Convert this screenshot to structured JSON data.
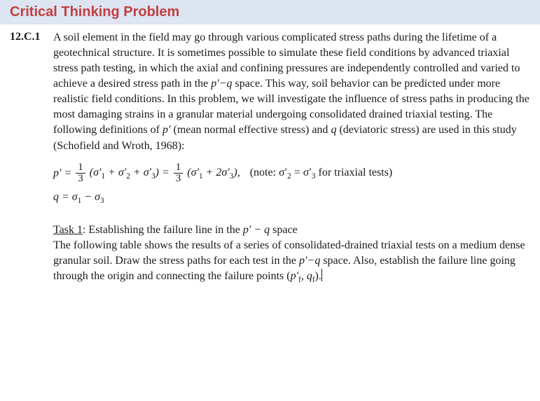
{
  "colors": {
    "heading_bg": "#dde4f2",
    "heading_fg": "#c33f3f",
    "body_fg": "#1a1a1a",
    "page_bg": "#ffffff"
  },
  "typography": {
    "heading_font": "Arial, Helvetica, sans-serif",
    "heading_size_pt": 15,
    "heading_weight": "bold",
    "body_font": "Georgia, Times New Roman, serif",
    "body_size_pt": 12,
    "line_height": 1.38
  },
  "heading": "Critical Thinking Problem",
  "problem": {
    "number": "12.C.1",
    "paragraph_pre": "A soil element in the field may go through various complicated stress paths during the lifetime of a geotechnical structure. It is sometimes possible to simulate these field conditions by advanced triaxial stress path testing, in which the axial and confining pressures are independently controlled and varied to achieve a desired stress path in the ",
    "pq_term_1": "p′−q",
    "paragraph_mid1": " space. This way, soil behavior can be predicted under more realistic field conditions. In this problem, we will investigate the influence of stress paths in producing the most damaging strains in a granular material undergoing consolidated drained triaxial testing. The following definitions of ",
    "p_term": "p′",
    "paragraph_mid2": " (mean normal effective stress) and ",
    "q_term": "q",
    "paragraph_post": " (deviatoric stress) are used in this study (Schofield and Wroth, 1968):"
  },
  "equations": {
    "p_lhs": "p′ =",
    "frac1": {
      "num": "1",
      "den": "3"
    },
    "p_mid1": "(σ′",
    "s1": "1",
    "plus": " + σ′",
    "s2": "2",
    "s3": "3",
    "p_close1": ") =",
    "frac2": {
      "num": "1",
      "den": "3"
    },
    "p_mid2": "(σ′",
    "p_two": " + 2σ′",
    "p_close2": "),",
    "note_pre": "(note: σ′",
    "note_eq": " = σ′",
    "note_post": " for triaxial tests)",
    "q_line_lhs": "q = σ",
    "q_sub1": "1",
    "q_minus": " − σ",
    "q_sub3": "3"
  },
  "task": {
    "title_pre": "Task 1",
    "title_post": ": Establishing the failure line in the ",
    "pq_space": "p′ − q",
    "title_end": " space",
    "body_pre": "The following table shows the results of a series of consolidated-drained triaxial tests on a medium dense granular soil. Draw the stress paths for each test in the ",
    "pq2": "p′−q",
    "body_mid": " space. Also, establish the failure line going through the origin and connecting the failure points (",
    "pf": "p′",
    "pf_sub": "f",
    "comma": ", ",
    "qf": "q",
    "qf_sub": "f",
    "body_end": ")."
  }
}
